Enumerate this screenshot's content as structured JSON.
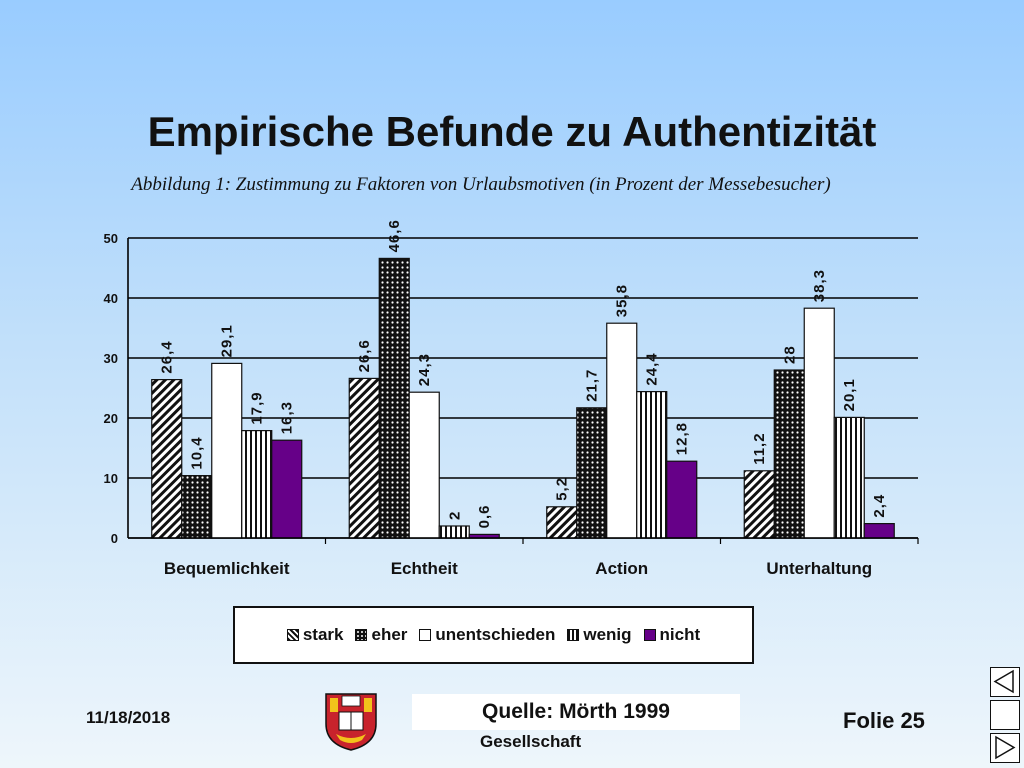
{
  "slide": {
    "title": "Empirische Befunde zu Authentizität",
    "caption": "Abbildung 1: Zustimmung zu Faktoren von Urlaubsmotiven (in Prozent der Messebesucher)",
    "date": "11/18/2018",
    "source": "Quelle: Mörth 1999",
    "organization": "Gesellschaft",
    "slide_label": "Folie 25"
  },
  "colors": {
    "background_top": "#99ccff",
    "bar_nicht": "#660088",
    "bar_unentschieden": "#ffffff",
    "gridline": "#000000"
  },
  "nav": {
    "icons": [
      "triangle-left-icon",
      "blank",
      "triangle-right-icon"
    ]
  },
  "chart_data": {
    "type": "bar",
    "categories": [
      "Bequemlichkeit",
      "Echtheit",
      "Action",
      "Unterhaltung"
    ],
    "series": [
      {
        "name": "stark",
        "pattern": "diagonal-stripes",
        "values": [
          26.4,
          26.6,
          5.2,
          11.2
        ],
        "labels": [
          "26,4",
          "26,6",
          "5,2",
          "11,2"
        ]
      },
      {
        "name": "eher",
        "pattern": "dots",
        "values": [
          10.4,
          46.6,
          21.7,
          28
        ],
        "labels": [
          "10,4",
          "46,6",
          "21,7",
          "28"
        ]
      },
      {
        "name": "unentschieden",
        "pattern": "solid-white",
        "values": [
          29.1,
          24.3,
          35.8,
          38.3
        ],
        "labels": [
          "29,1",
          "24,3",
          "35,8",
          "38,3"
        ]
      },
      {
        "name": "wenig",
        "pattern": "vertical-stripes",
        "values": [
          17.9,
          2,
          24.4,
          20.1
        ],
        "labels": [
          "17,9",
          "2",
          "24,4",
          "20,1"
        ]
      },
      {
        "name": "nicht",
        "pattern": "solid-purple",
        "values": [
          16.3,
          0.6,
          12.8,
          2.4
        ],
        "labels": [
          "16,3",
          "0,6",
          "12,8",
          "2,4"
        ]
      }
    ],
    "ylim": [
      0,
      50
    ],
    "yticks": [
      0,
      10,
      20,
      30,
      40,
      50
    ],
    "grid": true,
    "legend_position": "bottom",
    "data_label_rotation": "vertical"
  }
}
